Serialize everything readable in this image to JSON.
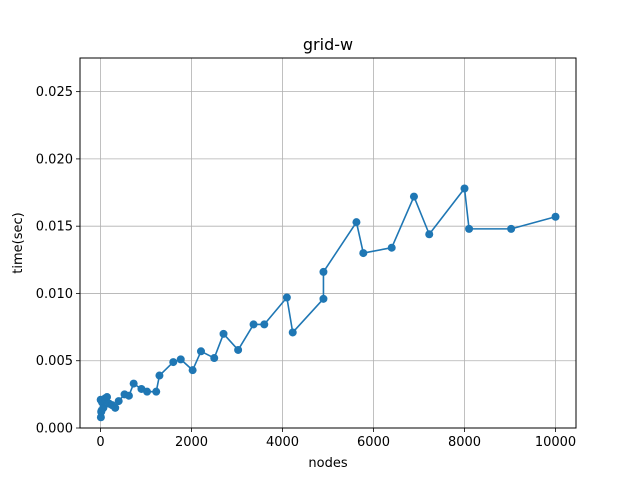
{
  "chart_data": {
    "type": "line",
    "title": "grid-w",
    "xlabel": "nodes",
    "ylabel": "time(sec)",
    "xlim": [
      -450,
      10450
    ],
    "ylim": [
      0,
      0.0275
    ],
    "xticks": [
      0,
      2000,
      4000,
      6000,
      8000,
      10000
    ],
    "xtick_labels": [
      "0",
      "2000",
      "4000",
      "6000",
      "8000",
      "10000"
    ],
    "yticks": [
      0,
      0.005,
      0.01,
      0.015,
      0.02,
      0.025
    ],
    "ytick_labels": [
      "0.000",
      "0.005",
      "0.010",
      "0.015",
      "0.020",
      "0.025"
    ],
    "grid": true,
    "marker": "circle",
    "line_color": "#1f77b4",
    "series": [
      {
        "x": [
          4,
          9,
          16,
          25,
          36,
          64,
          100,
          144,
          196,
          256,
          324,
          400,
          529,
          625,
          729,
          900,
          1024,
          1225,
          1296,
          1600,
          1764,
          2025,
          2209,
          2500,
          2704,
          3025,
          3364,
          3600,
          4096,
          4225,
          4900,
          4900,
          5625,
          5776,
          6400,
          6889,
          7225,
          8000,
          8100,
          9025,
          10000
        ],
        "y": [
          0.0021,
          0.0008,
          0.0012,
          0.0013,
          0.0019,
          0.0015,
          0.0022,
          0.0023,
          0.0018,
          0.0017,
          0.0015,
          0.002,
          0.0025,
          0.0024,
          0.0033,
          0.0029,
          0.0027,
          0.0027,
          0.0039,
          0.0049,
          0.0051,
          0.0043,
          0.0057,
          0.0052,
          0.007,
          0.0058,
          0.0077,
          0.0077,
          0.0097,
          0.0071,
          0.0096,
          0.0116,
          0.0153,
          0.013,
          0.0134,
          0.0172,
          0.0144,
          0.0178,
          0.0148,
          0.0148,
          0.0157
        ]
      }
    ]
  }
}
